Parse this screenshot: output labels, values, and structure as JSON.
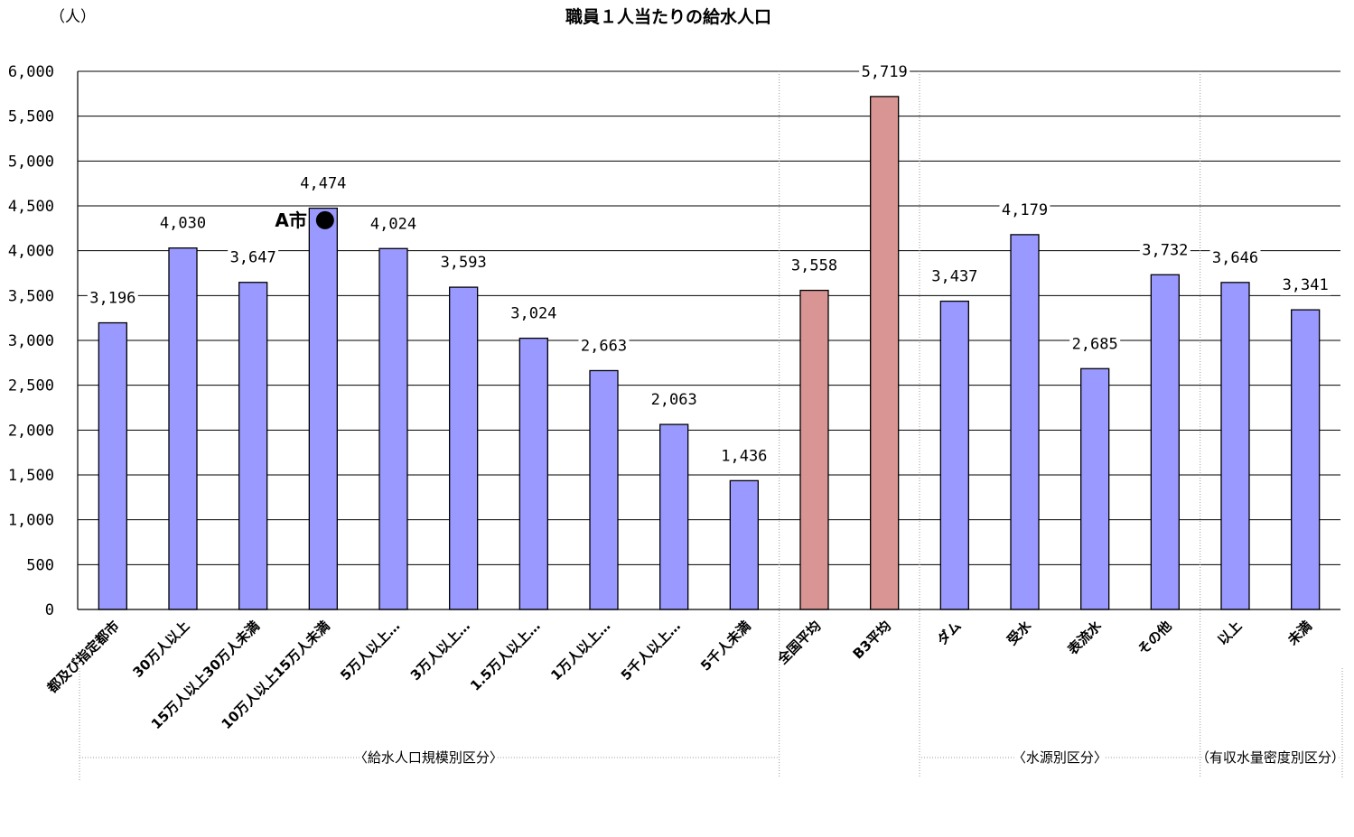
{
  "chart_data": {
    "type": "bar",
    "title": "職員１人当たりの給水人口",
    "ylabel": "（人）",
    "ylim": [
      0,
      6000
    ],
    "yticks": [
      0,
      500,
      1000,
      1500,
      2000,
      2500,
      3000,
      3500,
      4000,
      4500,
      5000,
      5500,
      6000
    ],
    "ytick_labels": [
      "0",
      "500",
      "1,000",
      "1,500",
      "2,000",
      "2,500",
      "3,000",
      "3,500",
      "4,000",
      "4,500",
      "5,000",
      "5,500",
      "6,000"
    ],
    "grid": true,
    "categories": [
      "都及び指定都市",
      "30万人以上",
      "15万人以上30万人未満",
      "10万人以上15万人未満",
      "5万人以上…",
      "3万人以上…",
      "1.5万人以上…",
      "1万人以上…",
      "5千人以上…",
      "5千人未満",
      "全国平均",
      "B3平均",
      "ダム",
      "受水",
      "表流水",
      "その他",
      "以上",
      "未満"
    ],
    "values": [
      3196,
      4030,
      3647,
      4474,
      4024,
      3593,
      3024,
      2663,
      2063,
      1436,
      3558,
      5719,
      3437,
      4179,
      2685,
      3732,
      3646,
      3341
    ],
    "data_labels": [
      "3,196",
      "4,030",
      "3,647",
      "4,474",
      "4,024",
      "3,593",
      "3,024",
      "2,663",
      "2,063",
      "1,436",
      "3,558",
      "5,719",
      "3,437",
      "4,179",
      "2,685",
      "3,732",
      "3,646",
      "3,341"
    ],
    "bar_colors": [
      "#9999ff",
      "#9999ff",
      "#9999ff",
      "#9999ff",
      "#9999ff",
      "#9999ff",
      "#9999ff",
      "#9999ff",
      "#9999ff",
      "#9999ff",
      "#d99594",
      "#d99594",
      "#9999ff",
      "#9999ff",
      "#9999ff",
      "#9999ff",
      "#9999ff",
      "#9999ff"
    ],
    "groups": [
      {
        "label": "〈給水人口規模別区分〉",
        "start": 0,
        "end": 9
      },
      {
        "label": "〈水源別区分〉",
        "start": 12,
        "end": 15
      },
      {
        "label": "（有収水量密度別区分）",
        "start": 16,
        "end": 17
      }
    ],
    "annotations": [
      {
        "text": "A市",
        "category_index": 3,
        "value": 4340,
        "marker": "filled-circle"
      }
    ]
  }
}
